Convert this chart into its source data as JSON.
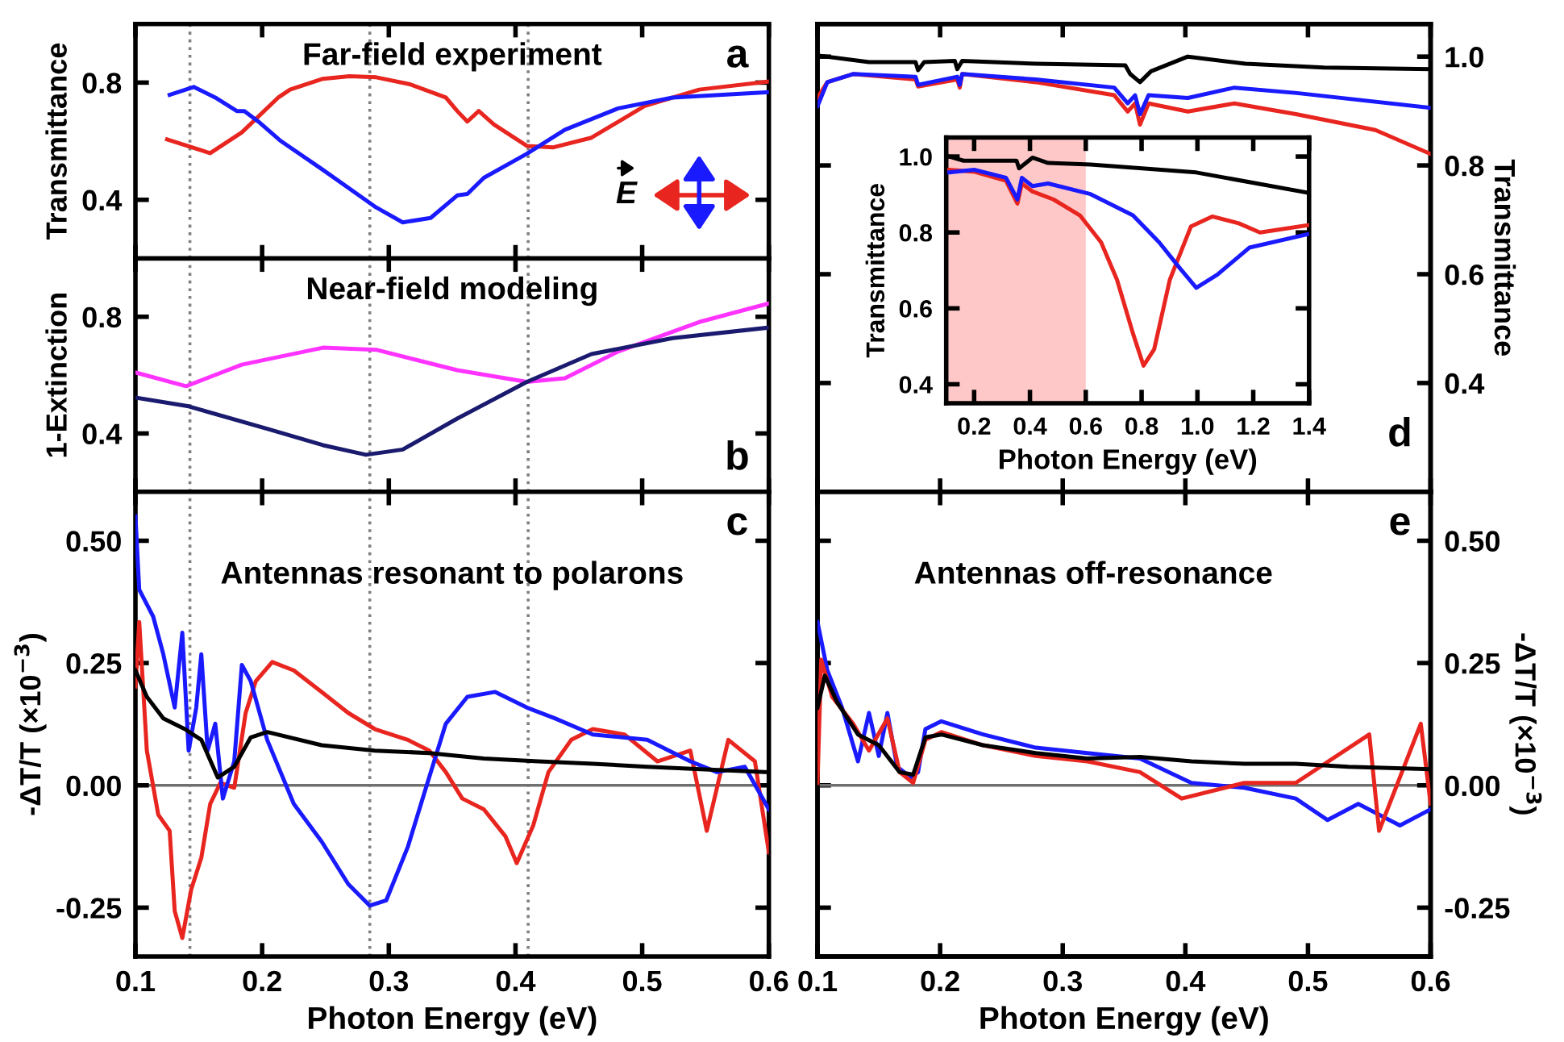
{
  "chart_data": [
    {
      "type": "line",
      "title": "Far-field experiment",
      "ylabel": "Transmittance",
      "annotations": [
        "a",
        "E"
      ],
      "xlim": [
        0.1,
        0.6
      ],
      "xticks": [
        0.1,
        0.2,
        0.3,
        0.4,
        0.5,
        0.6
      ],
      "ylim": [
        0.2,
        1.0
      ],
      "yticks": [
        0.4,
        0.8
      ],
      "tick_labels": "y",
      "ref_lines": [
        {
          "axis": "x",
          "value": 0.143,
          "color": "#808080",
          "line_style": "dotted"
        },
        {
          "axis": "x",
          "value": 0.285,
          "color": "#808080",
          "line_style": "dotted"
        },
        {
          "axis": "x",
          "value": 0.41,
          "color": "#808080",
          "line_style": "dotted"
        }
      ],
      "series": [
        {
          "color": "#e8251f",
          "x": [
            0.125,
            0.159,
            0.184,
            0.213,
            0.222,
            0.248,
            0.269,
            0.29,
            0.316,
            0.345,
            0.354,
            0.362,
            0.371,
            0.383,
            0.409,
            0.43,
            0.46,
            0.502,
            0.545,
            0.6
          ],
          "values": [
            0.606,
            0.559,
            0.63,
            0.75,
            0.776,
            0.813,
            0.822,
            0.818,
            0.795,
            0.749,
            0.703,
            0.667,
            0.703,
            0.657,
            0.584,
            0.579,
            0.612,
            0.72,
            0.776,
            0.804
          ]
        },
        {
          "color": "#1a1aff",
          "x": [
            0.127,
            0.146,
            0.163,
            0.18,
            0.186,
            0.197,
            0.214,
            0.248,
            0.29,
            0.311,
            0.333,
            0.354,
            0.362,
            0.375,
            0.409,
            0.439,
            0.481,
            0.524,
            0.6
          ],
          "values": [
            0.758,
            0.785,
            0.749,
            0.703,
            0.703,
            0.667,
            0.603,
            0.502,
            0.374,
            0.323,
            0.338,
            0.415,
            0.42,
            0.475,
            0.557,
            0.639,
            0.712,
            0.749,
            0.767
          ]
        }
      ]
    },
    {
      "type": "line",
      "title": "Near-field modeling",
      "ylabel": "1-Extinction",
      "annotations": [
        "b"
      ],
      "xlim": [
        0.1,
        0.6
      ],
      "xticks": [
        0.1,
        0.2,
        0.3,
        0.4,
        0.5,
        0.6
      ],
      "ylim": [
        0.2,
        1.0
      ],
      "yticks": [
        0.4,
        0.8
      ],
      "tick_labels": "y",
      "ref_lines": [
        {
          "axis": "x",
          "value": 0.143,
          "color": "#808080",
          "line_style": "dotted"
        },
        {
          "axis": "x",
          "value": 0.285,
          "color": "#808080",
          "line_style": "dotted"
        },
        {
          "axis": "x",
          "value": 0.41,
          "color": "#808080",
          "line_style": "dotted"
        }
      ],
      "series": [
        {
          "color": "#ff33ff",
          "x": [
            0.101,
            0.14,
            0.184,
            0.248,
            0.29,
            0.354,
            0.409,
            0.439,
            0.481,
            0.545,
            0.6
          ],
          "values": [
            0.608,
            0.562,
            0.636,
            0.694,
            0.687,
            0.617,
            0.577,
            0.589,
            0.681,
            0.782,
            0.846
          ]
        },
        {
          "color": "#1a1a6e",
          "x": [
            0.101,
            0.142,
            0.205,
            0.248,
            0.282,
            0.311,
            0.354,
            0.409,
            0.46,
            0.524,
            0.6
          ],
          "values": [
            0.522,
            0.493,
            0.415,
            0.36,
            0.327,
            0.345,
            0.451,
            0.577,
            0.672,
            0.727,
            0.763
          ]
        }
      ]
    },
    {
      "type": "line",
      "title": "Antennas resonant to polarons",
      "xlabel": "Photon Energy (eV)",
      "ylabel": "-ΔT/T (×10$^{−3}$)",
      "annotations": [
        "c"
      ],
      "xlim": [
        0.1,
        0.6
      ],
      "xticks": [
        0.1,
        0.2,
        0.3,
        0.4,
        0.5,
        0.6
      ],
      "ylim": [
        -0.35,
        0.6
      ],
      "yticks": [
        {
          "value": -0.25,
          "label": "-0.25"
        },
        {
          "value": 0.0,
          "label": "0.00"
        },
        0.25,
        {
          "value": 0.5,
          "label": "0.50"
        }
      ],
      "ref_lines": [
        {
          "axis": "x",
          "value": 0.143,
          "color": "#808080",
          "line_style": "dotted"
        },
        {
          "axis": "x",
          "value": 0.285,
          "color": "#808080",
          "line_style": "dotted"
        },
        {
          "axis": "x",
          "value": 0.41,
          "color": "#808080",
          "line_style": "dotted"
        },
        {
          "axis": "y",
          "value": 0.0,
          "color": "#707070",
          "line_style": "solid"
        }
      ],
      "series": [
        {
          "color": "#e8251f",
          "x": [
            0.1,
            0.103,
            0.109,
            0.118,
            0.127,
            0.131,
            0.137,
            0.144,
            0.152,
            0.159,
            0.167,
            0.178,
            0.187,
            0.195,
            0.208,
            0.225,
            0.247,
            0.268,
            0.289,
            0.315,
            0.332,
            0.345,
            0.358,
            0.375,
            0.392,
            0.401,
            0.414,
            0.426,
            0.444,
            0.461,
            0.486,
            0.512,
            0.538,
            0.551,
            0.568,
            0.589,
            0.6
          ],
          "values": [
            0.202,
            0.334,
            0.071,
            -0.06,
            -0.093,
            -0.257,
            -0.312,
            -0.213,
            -0.148,
            -0.038,
            0.005,
            -0.005,
            0.148,
            0.213,
            0.252,
            0.235,
            0.191,
            0.148,
            0.115,
            0.093,
            0.071,
            0.027,
            -0.027,
            -0.049,
            -0.104,
            -0.159,
            -0.082,
            0.027,
            0.093,
            0.115,
            0.104,
            0.049,
            0.071,
            -0.093,
            0.093,
            0.049,
            -0.137
          ]
        },
        {
          "color": "#1a1aff",
          "x": [
            0.1,
            0.103,
            0.114,
            0.122,
            0.131,
            0.137,
            0.142,
            0.148,
            0.152,
            0.157,
            0.163,
            0.169,
            0.178,
            0.184,
            0.191,
            0.204,
            0.225,
            0.247,
            0.268,
            0.285,
            0.298,
            0.315,
            0.328,
            0.345,
            0.362,
            0.384,
            0.409,
            0.431,
            0.461,
            0.504,
            0.538,
            0.559,
            0.581,
            0.6
          ],
          "values": [
            0.55,
            0.4,
            0.345,
            0.268,
            0.159,
            0.312,
            0.071,
            0.159,
            0.268,
            0.071,
            0.126,
            -0.027,
            0.049,
            0.246,
            0.213,
            0.093,
            -0.038,
            -0.115,
            -0.202,
            -0.246,
            -0.235,
            -0.126,
            -0.016,
            0.126,
            0.181,
            0.191,
            0.159,
            0.137,
            0.104,
            0.093,
            0.049,
            0.027,
            0.038,
            -0.049
          ]
        },
        {
          "color": "#000000",
          "x": [
            0.1,
            0.109,
            0.122,
            0.139,
            0.152,
            0.165,
            0.178,
            0.191,
            0.204,
            0.247,
            0.289,
            0.332,
            0.375,
            0.418,
            0.461,
            0.504,
            0.546,
            0.6
          ],
          "values": [
            0.235,
            0.181,
            0.137,
            0.115,
            0.093,
            0.016,
            0.038,
            0.098,
            0.109,
            0.082,
            0.071,
            0.066,
            0.055,
            0.049,
            0.044,
            0.038,
            0.033,
            0.027
          ]
        }
      ]
    },
    {
      "type": "line",
      "y2label": "Transmittance",
      "annotations": [
        "d"
      ],
      "xlim": [
        0.1,
        0.6
      ],
      "xticks": [
        0.1,
        0.2,
        0.3,
        0.4,
        0.5,
        0.6
      ],
      "y2lim": [
        0.2,
        1.06
      ],
      "y2ticks": [
        0.4,
        0.6,
        0.8,
        {
          "value": 1.0,
          "label": "1.0"
        }
      ],
      "tick_labels": "y",
      "series": [
        {
          "color": "#000000",
          "axis": "y2",
          "x": [
            0.101,
            0.142,
            0.18,
            0.182,
            0.187,
            0.212,
            0.214,
            0.218,
            0.278,
            0.351,
            0.355,
            0.363,
            0.372,
            0.402,
            0.449,
            0.513,
            0.6
          ],
          "values": [
            1.002,
            0.99,
            0.99,
            0.975,
            0.99,
            0.992,
            0.977,
            0.992,
            0.987,
            0.984,
            0.968,
            0.953,
            0.973,
            1.0,
            0.987,
            0.98,
            0.977
          ]
        },
        {
          "color": "#e8251f",
          "axis": "y2",
          "x": [
            0.1,
            0.108,
            0.129,
            0.18,
            0.182,
            0.214,
            0.216,
            0.218,
            0.278,
            0.342,
            0.353,
            0.359,
            0.363,
            0.37,
            0.402,
            0.44,
            0.491,
            0.555,
            0.6
          ],
          "values": [
            0.924,
            0.953,
            0.968,
            0.958,
            0.945,
            0.958,
            0.943,
            0.968,
            0.953,
            0.929,
            0.899,
            0.914,
            0.875,
            0.914,
            0.899,
            0.914,
            0.894,
            0.865,
            0.821
          ]
        },
        {
          "color": "#1a1aff",
          "axis": "y2",
          "x": [
            0.1,
            0.108,
            0.129,
            0.18,
            0.182,
            0.214,
            0.216,
            0.218,
            0.278,
            0.342,
            0.353,
            0.359,
            0.363,
            0.37,
            0.402,
            0.44,
            0.491,
            0.6
          ],
          "values": [
            0.909,
            0.953,
            0.968,
            0.963,
            0.948,
            0.963,
            0.948,
            0.968,
            0.958,
            0.943,
            0.914,
            0.929,
            0.894,
            0.929,
            0.924,
            0.943,
            0.933,
            0.906
          ]
        }
      ]
    },
    {
      "type": "line",
      "xlabel": "Photon Energy (eV)",
      "ylabel": "Transmittance",
      "xlim": [
        0.1,
        1.4
      ],
      "xticks": [
        0.2,
        0.4,
        0.6,
        0.8,
        {
          "value": 1.0,
          "label": "1.0"
        },
        1.2,
        1.4
      ],
      "ylim": [
        0.35,
        1.05
      ],
      "yticks": [
        0.4,
        0.6,
        0.8,
        {
          "value": 1.0,
          "label": "1.0"
        }
      ],
      "bands": [
        {
          "axis": "x",
          "from": 0.1,
          "to": 0.6,
          "color": "#ffc8c8"
        }
      ],
      "series": [
        {
          "color": "#000000",
          "x": [
            0.111,
            0.162,
            0.352,
            0.361,
            0.409,
            0.465,
            0.617,
            0.996,
            1.394
          ],
          "values": [
            1.0,
            0.989,
            0.989,
            0.969,
            0.997,
            0.983,
            0.979,
            0.958,
            0.905
          ]
        },
        {
          "color": "#e8251f",
          "x": [
            0.111,
            0.2,
            0.314,
            0.355,
            0.371,
            0.409,
            0.484,
            0.579,
            0.655,
            0.712,
            0.769,
            0.807,
            0.845,
            0.901,
            0.977,
            1.053,
            1.148,
            1.224,
            1.394
          ],
          "values": [
            0.965,
            0.96,
            0.936,
            0.876,
            0.929,
            0.908,
            0.887,
            0.845,
            0.774,
            0.675,
            0.534,
            0.449,
            0.492,
            0.675,
            0.816,
            0.842,
            0.824,
            0.8,
            0.819
          ]
        },
        {
          "color": "#1a1aff",
          "x": [
            0.111,
            0.2,
            0.314,
            0.355,
            0.371,
            0.409,
            0.465,
            0.617,
            0.769,
            0.863,
            0.939,
            0.996,
            1.072,
            1.186,
            1.394
          ],
          "values": [
            0.958,
            0.965,
            0.944,
            0.887,
            0.944,
            0.922,
            0.929,
            0.901,
            0.845,
            0.774,
            0.704,
            0.654,
            0.689,
            0.76,
            0.795
          ]
        }
      ]
    },
    {
      "type": "line",
      "title": "Antennas off-resonance",
      "xlabel": "Photon Energy (eV)",
      "y2label": "-ΔT/T (×10$^{−3}$)",
      "annotations": [
        "e"
      ],
      "xlim": [
        0.1,
        0.6
      ],
      "xticks": [
        0.1,
        0.2,
        0.3,
        0.4,
        0.5,
        0.6
      ],
      "y2lim": [
        -0.35,
        0.6
      ],
      "y2ticks": [
        {
          "value": -0.25,
          "label": "-0.25"
        },
        {
          "value": 0.0,
          "label": "0.00"
        },
        0.25,
        {
          "value": 0.5,
          "label": "0.50"
        }
      ],
      "ref_lines": [
        {
          "axis": "y2",
          "value": 0.0,
          "color": "#707070",
          "line_style": "solid"
        }
      ],
      "series": [
        {
          "color": "#1a1aff",
          "axis": "y2",
          "x": [
            0.1,
            0.108,
            0.12,
            0.133,
            0.142,
            0.15,
            0.157,
            0.165,
            0.176,
            0.182,
            0.188,
            0.201,
            0.235,
            0.278,
            0.32,
            0.363,
            0.405,
            0.448,
            0.49,
            0.516,
            0.541,
            0.575,
            0.6
          ],
          "values": [
            0.334,
            0.235,
            0.159,
            0.049,
            0.148,
            0.06,
            0.148,
            0.038,
            0.016,
            0.027,
            0.115,
            0.131,
            0.104,
            0.077,
            0.066,
            0.055,
            0.005,
            -0.005,
            -0.027,
            -0.071,
            -0.038,
            -0.082,
            -0.049
          ]
        },
        {
          "color": "#e8251f",
          "axis": "y2",
          "x": [
            0.1,
            0.103,
            0.112,
            0.129,
            0.142,
            0.157,
            0.167,
            0.178,
            0.188,
            0.201,
            0.235,
            0.278,
            0.32,
            0.363,
            0.397,
            0.448,
            0.49,
            0.55,
            0.558,
            0.592,
            0.6
          ],
          "values": [
            0.005,
            0.257,
            0.181,
            0.126,
            0.071,
            0.137,
            0.027,
            0.005,
            0.093,
            0.109,
            0.082,
            0.06,
            0.049,
            0.027,
            -0.027,
            0.005,
            0.005,
            0.104,
            -0.093,
            0.126,
            -0.038
          ]
        },
        {
          "color": "#000000",
          "axis": "y2",
          "x": [
            0.1,
            0.106,
            0.116,
            0.133,
            0.15,
            0.167,
            0.178,
            0.188,
            0.201,
            0.235,
            0.278,
            0.32,
            0.363,
            0.405,
            0.448,
            0.49,
            0.533,
            0.6
          ],
          "values": [
            0.159,
            0.224,
            0.17,
            0.104,
            0.082,
            0.027,
            0.022,
            0.098,
            0.104,
            0.082,
            0.066,
            0.055,
            0.058,
            0.049,
            0.044,
            0.044,
            0.038,
            0.033
          ]
        }
      ]
    }
  ]
}
